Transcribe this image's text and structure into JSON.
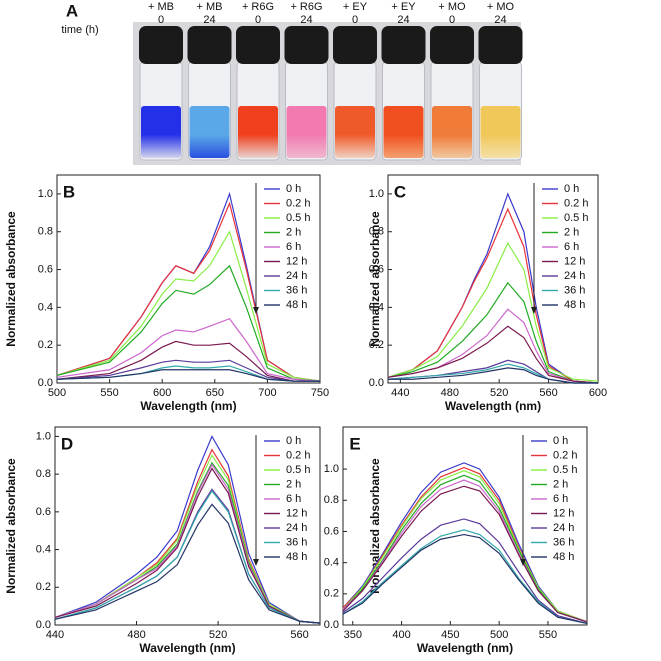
{
  "photo_panel": {
    "panel": "A",
    "time_label": "time (h)",
    "vials": [
      {
        "label": "+ MB",
        "time": "0"
      },
      {
        "label": "+ MB",
        "time": "24"
      },
      {
        "label": "+ R6G",
        "time": "0"
      },
      {
        "label": "+ R6G",
        "time": "24"
      },
      {
        "label": "+ EY",
        "time": "0"
      },
      {
        "label": "+ EY",
        "time": "24"
      },
      {
        "label": "+ MO",
        "time": "0"
      },
      {
        "label": "+ MO",
        "time": "24"
      }
    ]
  },
  "chart_data": [
    {
      "type": "line",
      "panel": "B",
      "x_label": "Wavelength (nm)",
      "y_label": "Normalized absorbance",
      "x": [
        500,
        550,
        580,
        600,
        613,
        630,
        645,
        664,
        680,
        700,
        725,
        750
      ],
      "xlim": [
        500,
        750
      ],
      "xticks": [
        500,
        550,
        600,
        650,
        700,
        750
      ],
      "ylim": [
        0,
        1.1
      ],
      "yticks": [
        {
          "value": 0,
          "label": "0.0"
        },
        0.2,
        0.4,
        0.6,
        0.8,
        {
          "value": 1,
          "label": "1.0"
        }
      ],
      "series": [
        {
          "name": "0 h",
          "color": "#3a3acc",
          "values": [
            0.04,
            0.13,
            0.35,
            0.53,
            0.62,
            0.58,
            0.72,
            1.0,
            0.62,
            0.12,
            0.03,
            0.01
          ]
        },
        {
          "name": "0.2 h",
          "color": "#e8333a",
          "values": [
            0.04,
            0.13,
            0.35,
            0.53,
            0.62,
            0.58,
            0.7,
            0.95,
            0.6,
            0.12,
            0.03,
            0.01
          ]
        },
        {
          "name": "0.5 h",
          "color": "#88ee44",
          "values": [
            0.04,
            0.12,
            0.3,
            0.47,
            0.55,
            0.54,
            0.62,
            0.8,
            0.5,
            0.1,
            0.03,
            0.01
          ]
        },
        {
          "name": "2 h",
          "color": "#22aa22",
          "values": [
            0.04,
            0.11,
            0.27,
            0.42,
            0.49,
            0.47,
            0.52,
            0.62,
            0.4,
            0.08,
            0.02,
            0.01
          ]
        },
        {
          "name": "6 h",
          "color": "#cc66cc",
          "values": [
            0.03,
            0.07,
            0.16,
            0.25,
            0.28,
            0.27,
            0.3,
            0.34,
            0.22,
            0.05,
            0.02,
            0.01
          ]
        },
        {
          "name": "12 h",
          "color": "#7a1a50",
          "values": [
            0.02,
            0.05,
            0.12,
            0.19,
            0.22,
            0.2,
            0.2,
            0.21,
            0.14,
            0.04,
            0.01,
            0.01
          ]
        },
        {
          "name": "24 h",
          "color": "#5a3a9a",
          "values": [
            0.02,
            0.04,
            0.08,
            0.11,
            0.12,
            0.11,
            0.11,
            0.12,
            0.08,
            0.03,
            0.01,
            0.01
          ]
        },
        {
          "name": "36 h",
          "color": "#33aaaa",
          "values": [
            0.02,
            0.03,
            0.05,
            0.08,
            0.09,
            0.08,
            0.08,
            0.09,
            0.06,
            0.02,
            0.01,
            0.01
          ]
        },
        {
          "name": "48 h",
          "color": "#223366",
          "values": [
            0.02,
            0.03,
            0.05,
            0.07,
            0.07,
            0.07,
            0.07,
            0.07,
            0.05,
            0.02,
            0.01,
            0.01
          ]
        }
      ]
    },
    {
      "type": "line",
      "panel": "C",
      "x_label": "Wavelength (nm)",
      "y_label": "Normalized absorbance",
      "x": [
        430,
        450,
        470,
        490,
        500,
        510,
        527,
        540,
        550,
        560,
        580,
        600
      ],
      "xlim": [
        430,
        600
      ],
      "xticks": [
        440,
        480,
        520,
        560,
        600
      ],
      "ylim": [
        0,
        1.1
      ],
      "yticks": [
        {
          "value": 0,
          "label": "0.0"
        },
        0.2,
        0.4,
        0.6,
        0.8,
        {
          "value": 1,
          "label": "1.0"
        }
      ],
      "series": [
        {
          "name": "0 h",
          "color": "#3a3acc",
          "values": [
            0.03,
            0.07,
            0.17,
            0.4,
            0.55,
            0.68,
            1.0,
            0.8,
            0.4,
            0.1,
            0.01,
            0
          ]
        },
        {
          "name": "0.2 h",
          "color": "#e8333a",
          "values": [
            0.03,
            0.07,
            0.17,
            0.4,
            0.54,
            0.66,
            0.92,
            0.72,
            0.36,
            0.09,
            0.01,
            0
          ]
        },
        {
          "name": "0.5 h",
          "color": "#88ee44",
          "values": [
            0.03,
            0.07,
            0.14,
            0.3,
            0.4,
            0.5,
            0.74,
            0.6,
            0.3,
            0.08,
            0.02,
            0.01
          ]
        },
        {
          "name": "2 h",
          "color": "#22aa22",
          "values": [
            0.03,
            0.06,
            0.11,
            0.22,
            0.29,
            0.36,
            0.53,
            0.43,
            0.22,
            0.06,
            0.01,
            0
          ]
        },
        {
          "name": "6 h",
          "color": "#cc66cc",
          "values": [
            0.03,
            0.05,
            0.08,
            0.15,
            0.2,
            0.25,
            0.39,
            0.32,
            0.17,
            0.05,
            0.01,
            0
          ]
        },
        {
          "name": "12 h",
          "color": "#7a1a50",
          "values": [
            0.03,
            0.05,
            0.08,
            0.13,
            0.17,
            0.21,
            0.3,
            0.24,
            0.13,
            0.04,
            0.01,
            0
          ]
        },
        {
          "name": "24 h",
          "color": "#5a3a9a",
          "values": [
            0.02,
            0.03,
            0.04,
            0.06,
            0.07,
            0.08,
            0.12,
            0.1,
            0.06,
            0.02,
            0,
            0
          ]
        },
        {
          "name": "36 h",
          "color": "#33aaaa",
          "values": [
            0.02,
            0.03,
            0.04,
            0.05,
            0.06,
            0.07,
            0.1,
            0.08,
            0.05,
            0.02,
            0,
            0
          ]
        },
        {
          "name": "48 h",
          "color": "#223366",
          "values": [
            0.02,
            0.02,
            0.03,
            0.04,
            0.05,
            0.06,
            0.08,
            0.07,
            0.04,
            0.02,
            0,
            0
          ]
        }
      ]
    },
    {
      "type": "line",
      "panel": "D",
      "x_label": "Wavelength (nm)",
      "y_label": "Normalized absorbance",
      "x": [
        440,
        460,
        480,
        490,
        500,
        510,
        517,
        525,
        535,
        545,
        560,
        570
      ],
      "xlim": [
        440,
        570
      ],
      "xticks": [
        440,
        480,
        520,
        560
      ],
      "ylim": [
        0,
        1.05
      ],
      "yticks": [
        {
          "value": 0,
          "label": "0.0"
        },
        0.2,
        0.4,
        0.6,
        0.8,
        {
          "value": 1,
          "label": "1.0"
        }
      ],
      "series": [
        {
          "name": "0 h",
          "color": "#3a3acc",
          "values": [
            0.04,
            0.12,
            0.27,
            0.36,
            0.5,
            0.82,
            1.0,
            0.85,
            0.38,
            0.12,
            0.02,
            0.01
          ]
        },
        {
          "name": "0.2 h",
          "color": "#e8333a",
          "values": [
            0.04,
            0.11,
            0.25,
            0.33,
            0.46,
            0.76,
            0.93,
            0.79,
            0.35,
            0.11,
            0.02,
            0.01
          ]
        },
        {
          "name": "0.5 h",
          "color": "#88ee44",
          "values": [
            0.04,
            0.11,
            0.25,
            0.32,
            0.45,
            0.74,
            0.9,
            0.77,
            0.34,
            0.11,
            0.02,
            0.01
          ]
        },
        {
          "name": "2 h",
          "color": "#22aa22",
          "values": [
            0.04,
            0.11,
            0.24,
            0.31,
            0.43,
            0.71,
            0.86,
            0.74,
            0.33,
            0.1,
            0.02,
            0.01
          ]
        },
        {
          "name": "6 h",
          "color": "#cc66cc",
          "values": [
            0.04,
            0.11,
            0.24,
            0.3,
            0.42,
            0.7,
            0.85,
            0.72,
            0.32,
            0.1,
            0.02,
            0.01
          ]
        },
        {
          "name": "12 h",
          "color": "#7a1a50",
          "values": [
            0.04,
            0.1,
            0.22,
            0.29,
            0.41,
            0.68,
            0.83,
            0.7,
            0.31,
            0.1,
            0.02,
            0.01
          ]
        },
        {
          "name": "24 h",
          "color": "#5a3a9a",
          "values": [
            0.03,
            0.09,
            0.2,
            0.26,
            0.36,
            0.6,
            0.72,
            0.61,
            0.27,
            0.09,
            0.02,
            0.01
          ]
        },
        {
          "name": "36 h",
          "color": "#33aaaa",
          "values": [
            0.03,
            0.09,
            0.2,
            0.26,
            0.36,
            0.59,
            0.71,
            0.6,
            0.27,
            0.09,
            0.02,
            0.01
          ]
        },
        {
          "name": "48 h",
          "color": "#223366",
          "values": [
            0.03,
            0.08,
            0.18,
            0.23,
            0.32,
            0.53,
            0.64,
            0.54,
            0.24,
            0.08,
            0.02,
            0.01
          ]
        }
      ]
    },
    {
      "type": "line",
      "panel": "E",
      "x_label": "Wavelength (nm)",
      "y_label": "Normalized absorbance",
      "x": [
        340,
        360,
        380,
        400,
        420,
        440,
        464,
        480,
        500,
        520,
        540,
        560,
        590
      ],
      "xlim": [
        340,
        590
      ],
      "xticks": [
        350,
        400,
        450,
        500,
        550
      ],
      "ylim": [
        0,
        1.27
      ],
      "yticks": [
        {
          "value": 0,
          "label": "0.0"
        },
        0.2,
        0.4,
        0.6,
        0.8,
        {
          "value": 1,
          "label": "1.0"
        }
      ],
      "series": [
        {
          "name": "0 h",
          "color": "#3a3acc",
          "values": [
            0.11,
            0.25,
            0.45,
            0.66,
            0.85,
            0.98,
            1.04,
            1.0,
            0.82,
            0.52,
            0.25,
            0.09,
            0.02
          ]
        },
        {
          "name": "0.2 h",
          "color": "#e8333a",
          "values": [
            0.11,
            0.24,
            0.44,
            0.64,
            0.82,
            0.95,
            1.01,
            0.97,
            0.8,
            0.5,
            0.24,
            0.09,
            0.02
          ]
        },
        {
          "name": "0.5 h",
          "color": "#88ee44",
          "values": [
            0.1,
            0.24,
            0.43,
            0.63,
            0.81,
            0.93,
            0.99,
            0.95,
            0.78,
            0.49,
            0.24,
            0.09,
            0.02
          ]
        },
        {
          "name": "2 h",
          "color": "#22aa22",
          "values": [
            0.1,
            0.23,
            0.41,
            0.61,
            0.78,
            0.9,
            0.96,
            0.92,
            0.75,
            0.48,
            0.23,
            0.08,
            0.02
          ]
        },
        {
          "name": "6 h",
          "color": "#cc66cc",
          "values": [
            0.1,
            0.22,
            0.4,
            0.59,
            0.76,
            0.87,
            0.93,
            0.89,
            0.73,
            0.46,
            0.22,
            0.08,
            0.02
          ]
        },
        {
          "name": "12 h",
          "color": "#7a1a50",
          "values": [
            0.09,
            0.22,
            0.39,
            0.57,
            0.73,
            0.84,
            0.89,
            0.86,
            0.71,
            0.45,
            0.22,
            0.08,
            0.02
          ]
        },
        {
          "name": "24 h",
          "color": "#5a3a9a",
          "values": [
            0.08,
            0.17,
            0.3,
            0.43,
            0.55,
            0.64,
            0.68,
            0.65,
            0.53,
            0.34,
            0.16,
            0.06,
            0.01
          ]
        },
        {
          "name": "36 h",
          "color": "#33aaaa",
          "values": [
            0.07,
            0.15,
            0.27,
            0.38,
            0.49,
            0.57,
            0.61,
            0.58,
            0.48,
            0.3,
            0.15,
            0.05,
            0.01
          ]
        },
        {
          "name": "48 h",
          "color": "#223366",
          "values": [
            0.07,
            0.14,
            0.26,
            0.37,
            0.48,
            0.55,
            0.58,
            0.56,
            0.46,
            0.29,
            0.14,
            0.05,
            0.01
          ]
        }
      ]
    }
  ]
}
